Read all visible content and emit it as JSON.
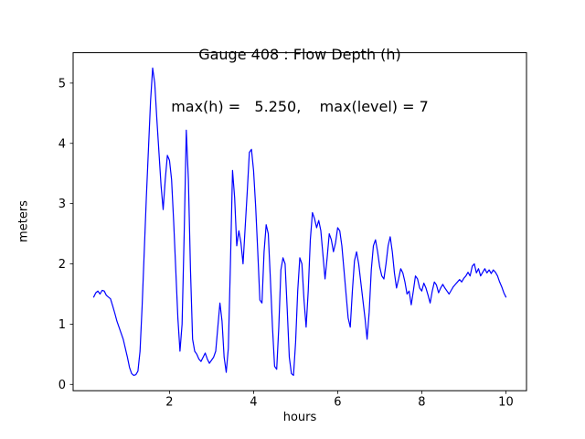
{
  "chart": {
    "title": "Gauge 408 : Flow Depth (h)",
    "subtitle": "max(h) =   5.250,    max(level) = 7",
    "xlabel": "hours",
    "ylabel": "meters"
  },
  "chart_data": {
    "type": "line",
    "title": "Gauge 408 : Flow Depth (h)",
    "subtitle": "max(h) =   5.250,    max(level) = 7",
    "xlabel": "hours",
    "ylabel": "meters",
    "xlim": [
      -0.29,
      10.49
    ],
    "ylim": [
      -0.105,
      5.505
    ],
    "xticks": [
      2,
      4,
      6,
      8,
      10
    ],
    "yticks": [
      0,
      1,
      2,
      3,
      4,
      5
    ],
    "grid": false,
    "legend": "none",
    "line_color": "#0000ff",
    "max_h": 5.25,
    "max_level": 7,
    "series": [
      {
        "name": "h",
        "points": [
          [
            0.2,
            1.45
          ],
          [
            0.25,
            1.52
          ],
          [
            0.3,
            1.55
          ],
          [
            0.35,
            1.5
          ],
          [
            0.4,
            1.56
          ],
          [
            0.45,
            1.55
          ],
          [
            0.5,
            1.48
          ],
          [
            0.55,
            1.45
          ],
          [
            0.6,
            1.42
          ],
          [
            0.65,
            1.3
          ],
          [
            0.7,
            1.18
          ],
          [
            0.75,
            1.05
          ],
          [
            0.8,
            0.95
          ],
          [
            0.85,
            0.85
          ],
          [
            0.9,
            0.75
          ],
          [
            0.95,
            0.6
          ],
          [
            1.0,
            0.45
          ],
          [
            1.05,
            0.28
          ],
          [
            1.1,
            0.18
          ],
          [
            1.15,
            0.15
          ],
          [
            1.2,
            0.16
          ],
          [
            1.25,
            0.22
          ],
          [
            1.3,
            0.55
          ],
          [
            1.35,
            1.3
          ],
          [
            1.4,
            2.2
          ],
          [
            1.45,
            3.1
          ],
          [
            1.5,
            3.9
          ],
          [
            1.55,
            4.7
          ],
          [
            1.6,
            5.25
          ],
          [
            1.65,
            5.0
          ],
          [
            1.7,
            4.4
          ],
          [
            1.75,
            3.85
          ],
          [
            1.8,
            3.3
          ],
          [
            1.85,
            2.9
          ],
          [
            1.9,
            3.4
          ],
          [
            1.95,
            3.8
          ],
          [
            2.0,
            3.72
          ],
          [
            2.05,
            3.4
          ],
          [
            2.1,
            2.7
          ],
          [
            2.15,
            1.9
          ],
          [
            2.2,
            1.1
          ],
          [
            2.25,
            0.55
          ],
          [
            2.3,
            1.0
          ],
          [
            2.35,
            2.5
          ],
          [
            2.4,
            4.22
          ],
          [
            2.45,
            3.4
          ],
          [
            2.5,
            1.9
          ],
          [
            2.55,
            0.75
          ],
          [
            2.6,
            0.55
          ],
          [
            2.65,
            0.5
          ],
          [
            2.7,
            0.42
          ],
          [
            2.75,
            0.38
          ],
          [
            2.8,
            0.45
          ],
          [
            2.85,
            0.52
          ],
          [
            2.9,
            0.42
          ],
          [
            2.95,
            0.35
          ],
          [
            3.0,
            0.4
          ],
          [
            3.05,
            0.45
          ],
          [
            3.1,
            0.55
          ],
          [
            3.15,
            0.95
          ],
          [
            3.2,
            1.35
          ],
          [
            3.25,
            1.05
          ],
          [
            3.3,
            0.45
          ],
          [
            3.35,
            0.2
          ],
          [
            3.4,
            0.6
          ],
          [
            3.45,
            2.0
          ],
          [
            3.5,
            3.55
          ],
          [
            3.55,
            3.1
          ],
          [
            3.6,
            2.3
          ],
          [
            3.65,
            2.55
          ],
          [
            3.7,
            2.35
          ],
          [
            3.75,
            2.0
          ],
          [
            3.8,
            2.6
          ],
          [
            3.85,
            3.2
          ],
          [
            3.9,
            3.85
          ],
          [
            3.95,
            3.9
          ],
          [
            4.0,
            3.55
          ],
          [
            4.05,
            2.95
          ],
          [
            4.1,
            2.2
          ],
          [
            4.15,
            1.4
          ],
          [
            4.2,
            1.35
          ],
          [
            4.25,
            2.2
          ],
          [
            4.3,
            2.65
          ],
          [
            4.35,
            2.5
          ],
          [
            4.4,
            1.75
          ],
          [
            4.45,
            0.95
          ],
          [
            4.5,
            0.3
          ],
          [
            4.55,
            0.25
          ],
          [
            4.6,
            0.95
          ],
          [
            4.65,
            1.9
          ],
          [
            4.7,
            2.1
          ],
          [
            4.75,
            2.0
          ],
          [
            4.8,
            1.25
          ],
          [
            4.85,
            0.45
          ],
          [
            4.9,
            0.18
          ],
          [
            4.95,
            0.15
          ],
          [
            5.0,
            0.7
          ],
          [
            5.05,
            1.55
          ],
          [
            5.1,
            2.1
          ],
          [
            5.15,
            2.0
          ],
          [
            5.2,
            1.4
          ],
          [
            5.25,
            0.95
          ],
          [
            5.3,
            1.55
          ],
          [
            5.35,
            2.4
          ],
          [
            5.4,
            2.85
          ],
          [
            5.45,
            2.75
          ],
          [
            5.5,
            2.6
          ],
          [
            5.55,
            2.72
          ],
          [
            5.6,
            2.55
          ],
          [
            5.65,
            2.15
          ],
          [
            5.7,
            1.75
          ],
          [
            5.75,
            2.1
          ],
          [
            5.8,
            2.5
          ],
          [
            5.85,
            2.4
          ],
          [
            5.9,
            2.2
          ],
          [
            5.95,
            2.35
          ],
          [
            6.0,
            2.6
          ],
          [
            6.05,
            2.55
          ],
          [
            6.1,
            2.3
          ],
          [
            6.15,
            1.9
          ],
          [
            6.2,
            1.5
          ],
          [
            6.25,
            1.1
          ],
          [
            6.3,
            0.95
          ],
          [
            6.35,
            1.55
          ],
          [
            6.4,
            2.05
          ],
          [
            6.45,
            2.2
          ],
          [
            6.5,
            2.0
          ],
          [
            6.55,
            1.7
          ],
          [
            6.6,
            1.4
          ],
          [
            6.65,
            1.1
          ],
          [
            6.7,
            0.75
          ],
          [
            6.75,
            1.2
          ],
          [
            6.8,
            1.9
          ],
          [
            6.85,
            2.3
          ],
          [
            6.9,
            2.4
          ],
          [
            6.95,
            2.2
          ],
          [
            7.0,
            1.95
          ],
          [
            7.05,
            1.8
          ],
          [
            7.1,
            1.75
          ],
          [
            7.15,
            2.0
          ],
          [
            7.2,
            2.3
          ],
          [
            7.25,
            2.45
          ],
          [
            7.3,
            2.2
          ],
          [
            7.35,
            1.85
          ],
          [
            7.4,
            1.6
          ],
          [
            7.45,
            1.75
          ],
          [
            7.5,
            1.92
          ],
          [
            7.55,
            1.85
          ],
          [
            7.6,
            1.7
          ],
          [
            7.65,
            1.5
          ],
          [
            7.7,
            1.55
          ],
          [
            7.75,
            1.32
          ],
          [
            7.8,
            1.55
          ],
          [
            7.85,
            1.8
          ],
          [
            7.9,
            1.75
          ],
          [
            7.95,
            1.6
          ],
          [
            8.0,
            1.55
          ],
          [
            8.05,
            1.68
          ],
          [
            8.1,
            1.6
          ],
          [
            8.15,
            1.48
          ],
          [
            8.2,
            1.35
          ],
          [
            8.25,
            1.55
          ],
          [
            8.3,
            1.7
          ],
          [
            8.35,
            1.65
          ],
          [
            8.4,
            1.52
          ],
          [
            8.45,
            1.6
          ],
          [
            8.5,
            1.66
          ],
          [
            8.55,
            1.6
          ],
          [
            8.6,
            1.55
          ],
          [
            8.65,
            1.5
          ],
          [
            8.7,
            1.56
          ],
          [
            8.75,
            1.62
          ],
          [
            8.8,
            1.66
          ],
          [
            8.85,
            1.7
          ],
          [
            8.9,
            1.74
          ],
          [
            8.95,
            1.7
          ],
          [
            9.0,
            1.76
          ],
          [
            9.05,
            1.8
          ],
          [
            9.1,
            1.86
          ],
          [
            9.15,
            1.8
          ],
          [
            9.2,
            1.96
          ],
          [
            9.25,
            2.0
          ],
          [
            9.3,
            1.85
          ],
          [
            9.35,
            1.92
          ],
          [
            9.4,
            1.8
          ],
          [
            9.45,
            1.86
          ],
          [
            9.5,
            1.92
          ],
          [
            9.55,
            1.85
          ],
          [
            9.6,
            1.9
          ],
          [
            9.65,
            1.84
          ],
          [
            9.7,
            1.9
          ],
          [
            9.75,
            1.86
          ],
          [
            9.8,
            1.8
          ],
          [
            9.85,
            1.7
          ],
          [
            9.9,
            1.62
          ],
          [
            9.95,
            1.52
          ],
          [
            10.0,
            1.45
          ]
        ]
      }
    ]
  }
}
